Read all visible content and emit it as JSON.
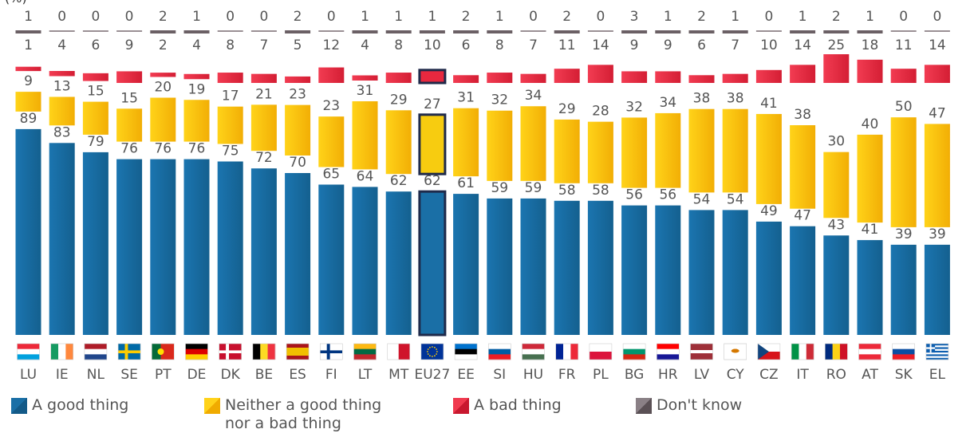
{
  "partial_title": "(%)",
  "chart_data": {
    "type": "bar",
    "stacked": true,
    "categories": [
      "LU",
      "IE",
      "NL",
      "SE",
      "PT",
      "DE",
      "DK",
      "BE",
      "ES",
      "FI",
      "LT",
      "MT",
      "EU27",
      "EE",
      "SI",
      "HU",
      "FR",
      "PL",
      "BG",
      "HR",
      "LV",
      "CY",
      "CZ",
      "IT",
      "RO",
      "AT",
      "SK",
      "EL"
    ],
    "highlight_category": "EU27",
    "series": [
      {
        "name": "A good thing",
        "color": "#1a6fa6",
        "values": [
          89,
          83,
          79,
          76,
          76,
          76,
          75,
          72,
          70,
          65,
          64,
          62,
          62,
          61,
          59,
          59,
          58,
          58,
          56,
          56,
          54,
          54,
          49,
          47,
          43,
          41,
          39,
          39
        ]
      },
      {
        "name": "Neither a good thing\nnor a bad thing",
        "color": "#f5c200",
        "values": [
          9,
          13,
          15,
          15,
          20,
          19,
          17,
          21,
          23,
          23,
          31,
          29,
          27,
          31,
          32,
          34,
          29,
          28,
          32,
          34,
          38,
          38,
          41,
          38,
          30,
          40,
          50,
          47
        ]
      },
      {
        "name": "A bad thing",
        "color": "#e8283f",
        "values": [
          1,
          4,
          6,
          9,
          2,
          4,
          8,
          7,
          5,
          12,
          4,
          8,
          10,
          6,
          8,
          7,
          11,
          14,
          9,
          9,
          6,
          7,
          10,
          14,
          25,
          18,
          11,
          14
        ]
      },
      {
        "name": "Don't know",
        "color": "#6b6065",
        "values": [
          1,
          0,
          0,
          0,
          2,
          1,
          0,
          0,
          2,
          0,
          1,
          1,
          1,
          2,
          1,
          0,
          2,
          0,
          3,
          1,
          2,
          1,
          0,
          1,
          2,
          1,
          0,
          0
        ]
      }
    ],
    "grid": false,
    "legend_position": "bottom"
  },
  "flags": {
    "LU": {
      "stripes": "h",
      "colors": [
        "#ed2939",
        "#ffffff",
        "#00a1de"
      ]
    },
    "IE": {
      "stripes": "v",
      "colors": [
        "#169b62",
        "#ffffff",
        "#ff883e"
      ]
    },
    "NL": {
      "stripes": "h",
      "colors": [
        "#ae1c28",
        "#ffffff",
        "#21468b"
      ]
    },
    "SE": {
      "stripes": "cross",
      "colors": [
        "#006aa7",
        "#fecc00"
      ]
    },
    "PT": {
      "stripes": "pt",
      "colors": [
        "#046a38",
        "#da291c"
      ]
    },
    "DE": {
      "stripes": "h",
      "colors": [
        "#000000",
        "#dd0000",
        "#ffce00"
      ]
    },
    "DK": {
      "stripes": "cross",
      "colors": [
        "#c8102e",
        "#ffffff"
      ]
    },
    "BE": {
      "stripes": "v",
      "colors": [
        "#000000",
        "#fdda24",
        "#ef3340"
      ]
    },
    "ES": {
      "stripes": "es",
      "colors": [
        "#aa151b",
        "#f1bf00"
      ]
    },
    "FI": {
      "stripes": "cross",
      "colors": [
        "#ffffff",
        "#003580"
      ]
    },
    "LT": {
      "stripes": "h",
      "colors": [
        "#fdb913",
        "#006a44",
        "#c1272d"
      ]
    },
    "MT": {
      "stripes": "v2",
      "colors": [
        "#ffffff",
        "#cf142b"
      ]
    },
    "EU27": {
      "stripes": "eu",
      "colors": [
        "#003399",
        "#ffcc00"
      ]
    },
    "EE": {
      "stripes": "h",
      "colors": [
        "#0072ce",
        "#000000",
        "#ffffff"
      ]
    },
    "SI": {
      "stripes": "h",
      "colors": [
        "#ffffff",
        "#005da4",
        "#ed1c24"
      ]
    },
    "HU": {
      "stripes": "h",
      "colors": [
        "#ce2939",
        "#ffffff",
        "#477050"
      ]
    },
    "FR": {
      "stripes": "v",
      "colors": [
        "#002395",
        "#ffffff",
        "#ed2939"
      ]
    },
    "PL": {
      "stripes": "h2",
      "colors": [
        "#ffffff",
        "#dc143c"
      ]
    },
    "BG": {
      "stripes": "h",
      "colors": [
        "#ffffff",
        "#00966e",
        "#d62612"
      ]
    },
    "HR": {
      "stripes": "h",
      "colors": [
        "#ff0000",
        "#ffffff",
        "#171796"
      ]
    },
    "LV": {
      "stripes": "lv",
      "colors": [
        "#9e3039",
        "#ffffff"
      ]
    },
    "CY": {
      "stripes": "cy",
      "colors": [
        "#ffffff",
        "#d57800"
      ]
    },
    "CZ": {
      "stripes": "cz",
      "colors": [
        "#ffffff",
        "#d7141a",
        "#11457e"
      ]
    },
    "IT": {
      "stripes": "v",
      "colors": [
        "#009246",
        "#ffffff",
        "#ce2b37"
      ]
    },
    "RO": {
      "stripes": "v",
      "colors": [
        "#002b7f",
        "#fcd116",
        "#ce1126"
      ]
    },
    "AT": {
      "stripes": "h",
      "colors": [
        "#ed2939",
        "#ffffff",
        "#ed2939"
      ]
    },
    "SK": {
      "stripes": "h",
      "colors": [
        "#ffffff",
        "#0b4ea2",
        "#ee1c25"
      ]
    },
    "EL": {
      "stripes": "el",
      "colors": [
        "#0d5eaf",
        "#ffffff"
      ]
    }
  }
}
